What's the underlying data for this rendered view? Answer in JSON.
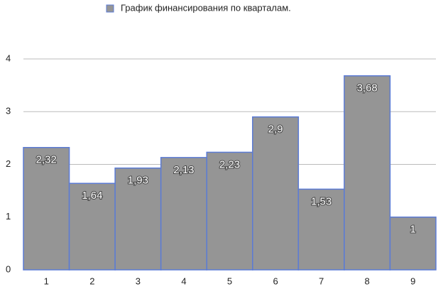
{
  "chart_data": {
    "type": "bar",
    "categories": [
      "1",
      "2",
      "3",
      "4",
      "5",
      "6",
      "7",
      "8",
      "9"
    ],
    "series": [
      {
        "name": "График финансирования по кварталам.",
        "color": "#959595",
        "values": [
          2.32,
          1.64,
          1.93,
          2.13,
          2.23,
          2.9,
          1.53,
          3.68,
          1
        ],
        "value_labels": [
          "2,32",
          "1,64",
          "1,93",
          "2,13",
          "2,23",
          "2,9",
          "1,53",
          "3,68",
          "1"
        ]
      }
    ],
    "ylim": [
      0,
      4
    ],
    "yticks": [
      0,
      1,
      2,
      3,
      4
    ],
    "grid": true,
    "legend": "top"
  }
}
